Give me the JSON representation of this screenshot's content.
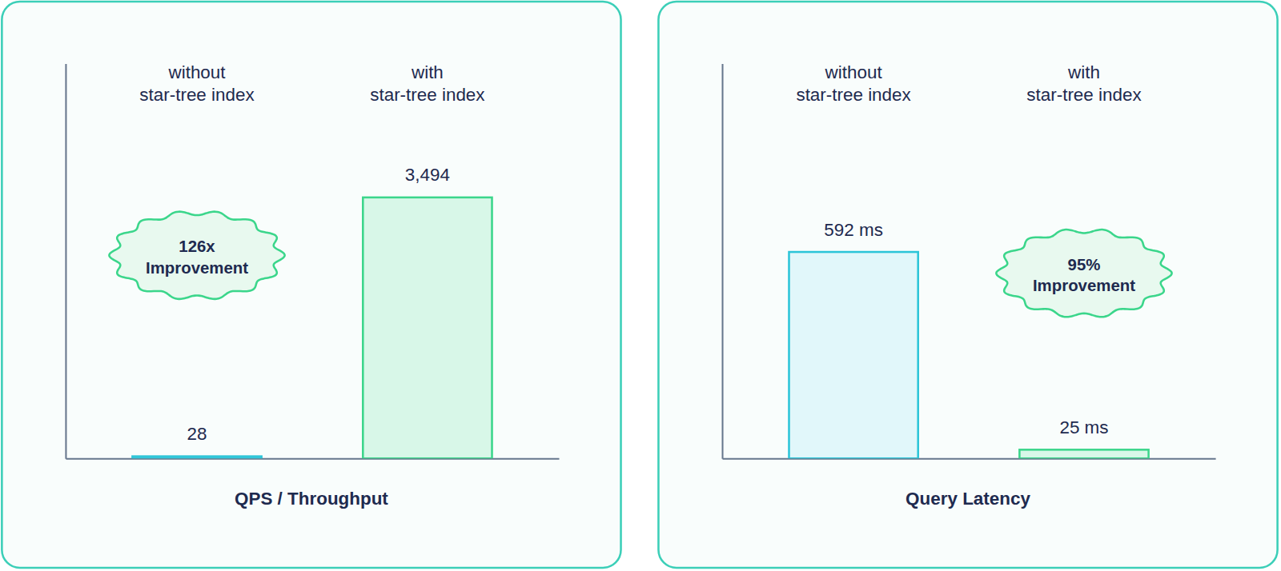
{
  "chart_data": [
    {
      "type": "bar",
      "title": "QPS / Throughput",
      "categories": [
        "without star-tree index",
        "with star-tree index"
      ],
      "values": [
        28,
        3494
      ],
      "value_labels": [
        "28",
        "3,494"
      ],
      "colors": [
        "#2cc5d8",
        "#3bd68b"
      ],
      "ylim": [
        0,
        5285
      ],
      "tick_labels": "x",
      "data_labels": true,
      "annotations": [
        "126x Improvement"
      ]
    },
    {
      "type": "bar",
      "title": "Query Latency",
      "categories": [
        "without star-tree index",
        "with star-tree index"
      ],
      "values": [
        592,
        25
      ],
      "value_labels": [
        "592 ms",
        "25 ms"
      ],
      "colors": [
        "#2cc5d8",
        "#3bd68b"
      ],
      "ylim": [
        0,
        1132
      ],
      "tick_labels": "x",
      "data_labels": true,
      "annotations": [
        "95% Improvement"
      ]
    }
  ]
}
